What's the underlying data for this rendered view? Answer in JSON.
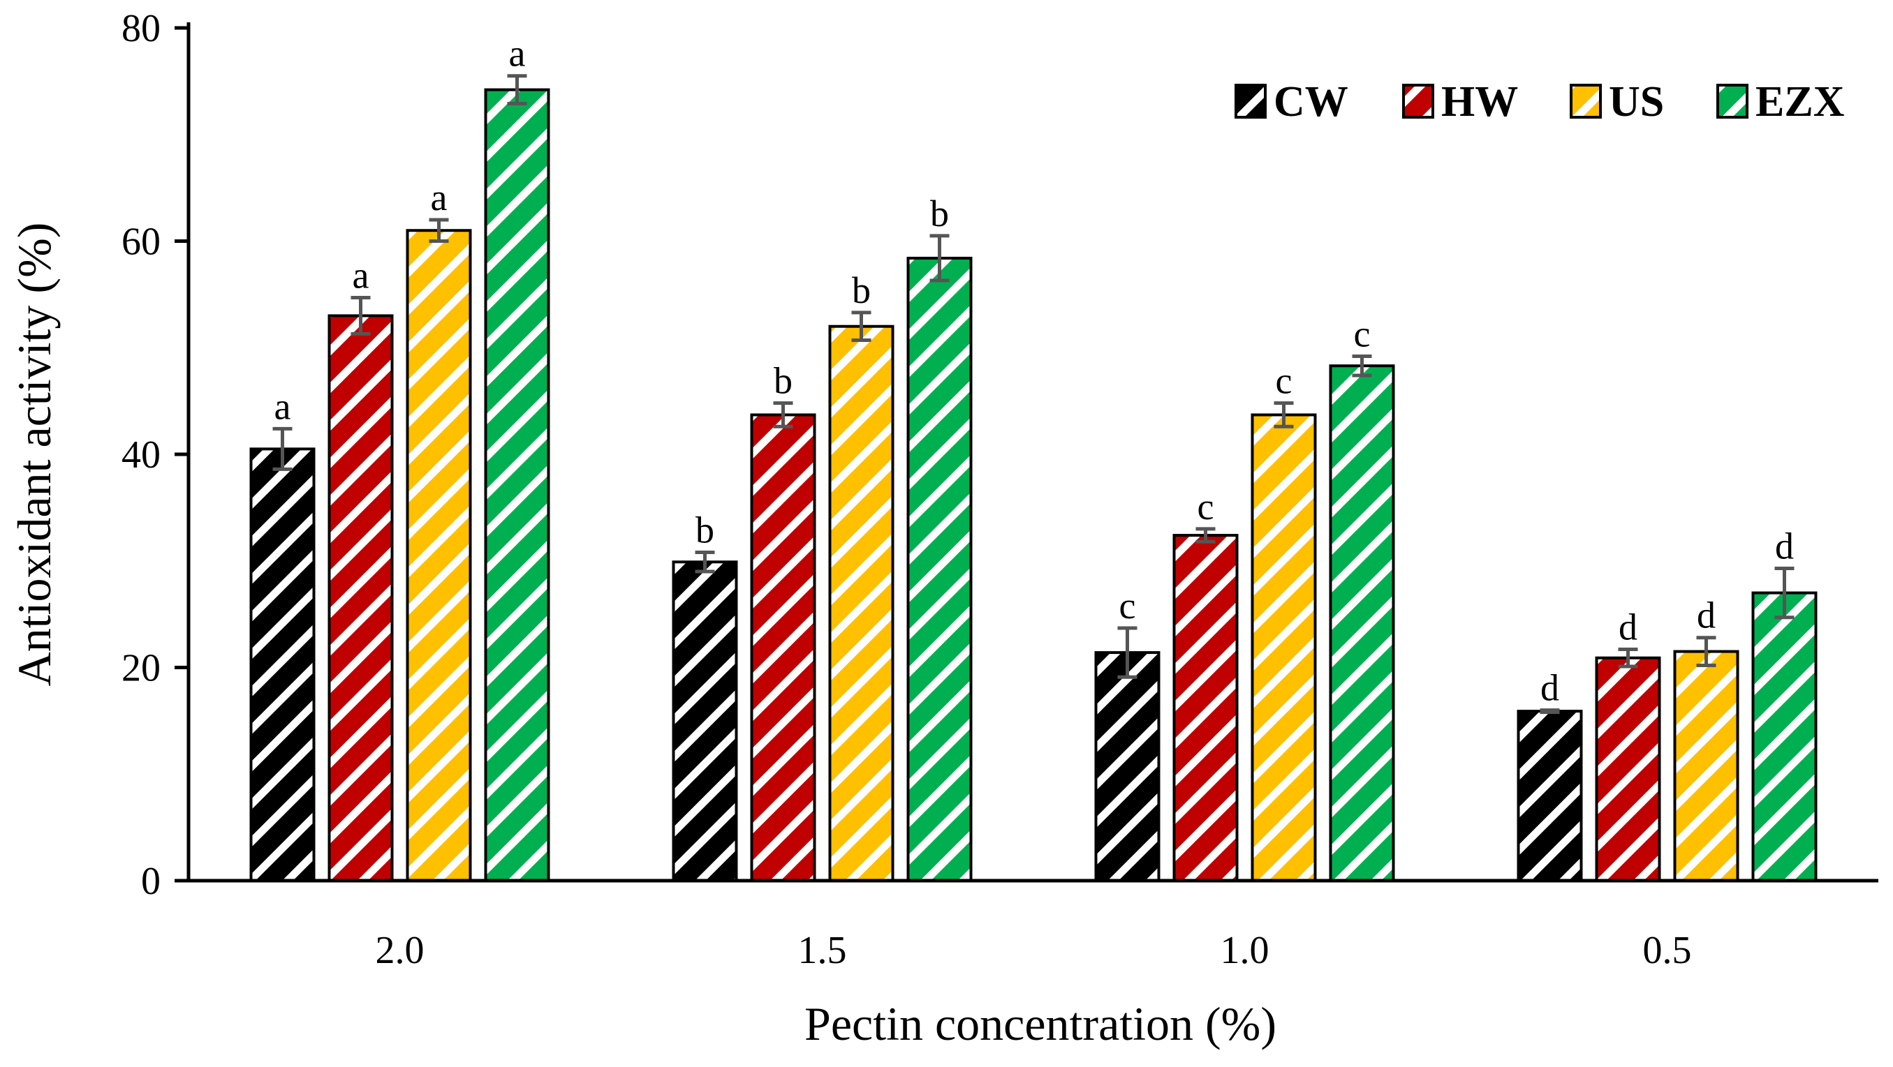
{
  "chart_data": {
    "type": "bar",
    "xlabel": "Pectin concentration (%)",
    "ylabel": "Antioxidant activity (%)",
    "ylim": [
      0,
      80
    ],
    "yticks": [
      0,
      20,
      40,
      60,
      80
    ],
    "ytick_labels": [
      "0",
      "20",
      "40",
      "60",
      "80"
    ],
    "categories": [
      "2.0",
      "1.5",
      "1.0",
      "0.5"
    ],
    "legend_position": "top-right",
    "series": [
      {
        "name": "CW",
        "color": "#000000",
        "values": [
          40.5,
          29.9,
          21.4,
          15.9
        ],
        "errors": [
          1.9,
          0.9,
          2.3,
          0.1
        ],
        "letters": [
          "a",
          "b",
          "c",
          "d"
        ]
      },
      {
        "name": "HW",
        "color": "#c00000",
        "values": [
          53.0,
          43.7,
          32.4,
          20.9
        ],
        "errors": [
          1.7,
          1.1,
          0.6,
          0.8
        ],
        "letters": [
          "a",
          "b",
          "c",
          "d"
        ]
      },
      {
        "name": "US",
        "color": "#ffc000",
        "values": [
          61.0,
          52.0,
          43.7,
          21.5
        ],
        "errors": [
          1.0,
          1.3,
          1.1,
          1.3
        ],
        "letters": [
          "a",
          "b",
          "c",
          "d"
        ]
      },
      {
        "name": "EZX",
        "color": "#00b050",
        "values": [
          74.2,
          58.4,
          48.3,
          27.0
        ],
        "errors": [
          1.3,
          2.1,
          0.9,
          2.3
        ],
        "letters": [
          "a",
          "b",
          "c",
          "d"
        ]
      }
    ]
  }
}
